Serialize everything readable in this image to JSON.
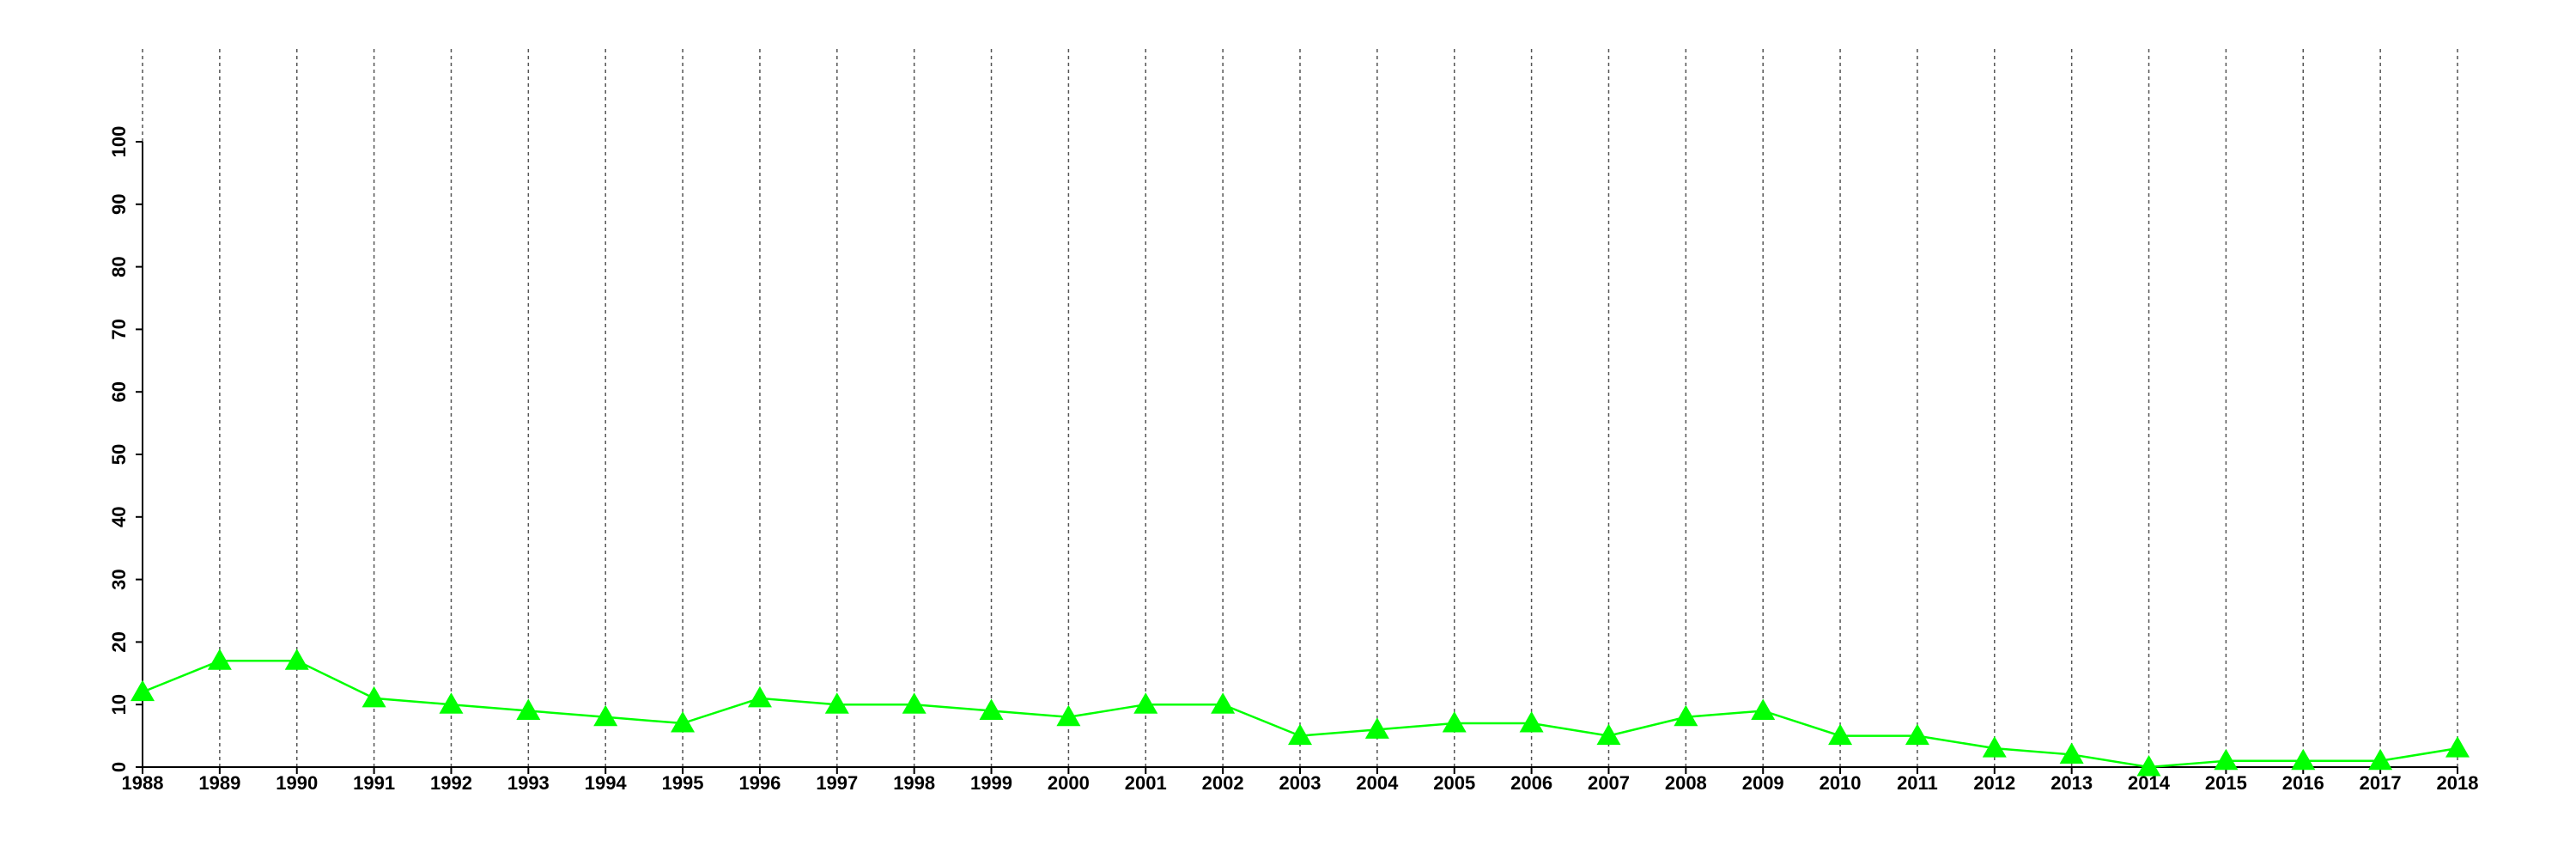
{
  "chart_data": {
    "type": "line",
    "x": [
      1988,
      1989,
      1990,
      1991,
      1992,
      1993,
      1994,
      1995,
      1996,
      1997,
      1998,
      1999,
      2000,
      2001,
      2002,
      2003,
      2004,
      2005,
      2006,
      2007,
      2008,
      2009,
      2010,
      2011,
      2012,
      2013,
      2014,
      2015,
      2016,
      2017,
      2018
    ],
    "series": [
      {
        "color": "#00ff00",
        "marker": "triangle",
        "values": [
          12,
          17,
          17,
          11,
          10,
          9,
          8,
          7,
          11,
          10,
          10,
          9,
          8,
          10,
          10,
          5,
          6,
          7,
          7,
          5,
          8,
          9,
          5,
          5,
          3,
          2,
          0,
          1,
          1,
          1,
          3
        ]
      }
    ],
    "xlim": [
      1988,
      2018
    ],
    "xticks": [
      1988,
      1989,
      1990,
      1991,
      1992,
      1993,
      1994,
      1995,
      1996,
      1997,
      1998,
      1999,
      2000,
      2001,
      2002,
      2003,
      2004,
      2005,
      2006,
      2007,
      2008,
      2009,
      2010,
      2011,
      2012,
      2013,
      2014,
      2015,
      2016,
      2017,
      2018
    ],
    "ylim": [
      0,
      100
    ],
    "yticks": [
      0,
      10,
      20,
      30,
      40,
      50,
      60,
      70,
      80,
      90,
      100
    ],
    "grid": "x"
  }
}
